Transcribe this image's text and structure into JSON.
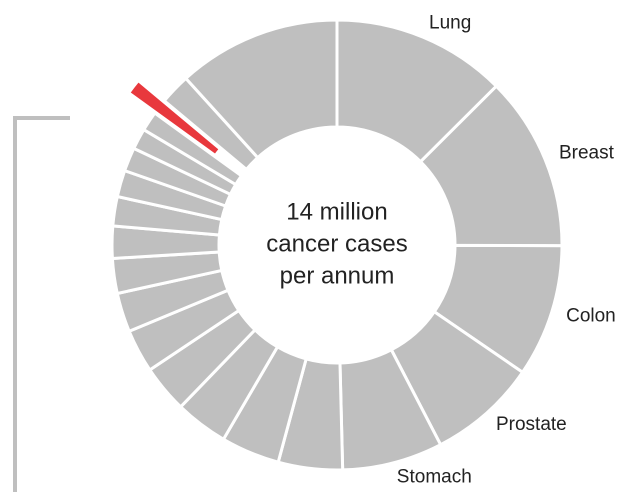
{
  "chart_data": {
    "type": "donut",
    "center_lines": [
      "14 million",
      "cancer cases",
      "per annum"
    ],
    "categories": [
      "Lung",
      "Breast",
      "Colon",
      "Prostate",
      "Stomach",
      null,
      null,
      null,
      null,
      null,
      null,
      null,
      null,
      null,
      null,
      null,
      null,
      null,
      null,
      null,
      null
    ],
    "values": [
      12.5,
      12.5,
      9.5,
      7.8,
      7.2,
      4.6,
      4.2,
      3.8,
      3.4,
      3.1,
      2.8,
      2.5,
      2.3,
      2.1,
      1.9,
      1.7,
      1.5,
      1.4,
      1.1,
      2.2,
      11.7
    ],
    "color": "#bfbfbf",
    "highlight": {
      "index": 18,
      "color": "#e8383d"
    }
  }
}
